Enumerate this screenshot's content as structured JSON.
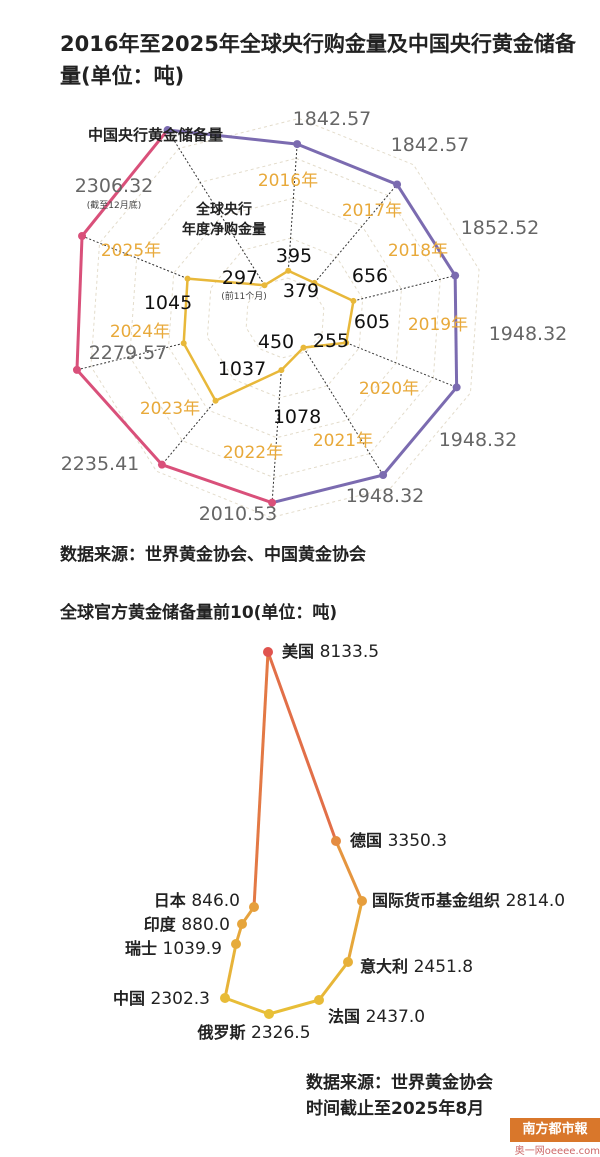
{
  "chart_data": [
    {
      "type": "radar",
      "title": "2016年至2025年全球央行购金量及中国央行黄金储备量(单位：吨)",
      "categories": [
        "2016年",
        "2017年",
        "2018年",
        "2019年",
        "2020年",
        "2021年",
        "2022年",
        "2023年",
        "2024年",
        "2025年"
      ],
      "series": [
        {
          "name": "中国央行黄金储备量",
          "values": [
            1842.57,
            1842.57,
            1852.52,
            1948.32,
            1948.32,
            1948.32,
            2010.53,
            2235.41,
            2279.57,
            2306.32
          ],
          "labels": [
            "1842.57",
            "1842.57",
            "1852.52",
            "1948.32",
            "1948.32",
            "1948.32",
            "2010.53",
            "2235.41",
            "2279.57",
            "2306.32"
          ]
        },
        {
          "name": "全球央行年度净购金量",
          "values": [
            395,
            379,
            656,
            605,
            255,
            450,
            1078,
            1037,
            1045,
            297
          ],
          "labels": [
            "395",
            "379",
            "656",
            "605",
            "255",
            "450",
            "1078",
            "1037",
            "1045",
            "297"
          ]
        }
      ],
      "notes": {
        "cn_2025": "(截至12月底)",
        "world_2025": "(前11个月)"
      },
      "colors": {
        "china": "#7b6bb0",
        "china_recent": "#d9507a",
        "world": "#e8b83a",
        "year_label": "#e8a93a",
        "grid": "#e3dccb"
      },
      "source": "数据来源：世界黄金协会、中国黄金协会"
    },
    {
      "type": "ranked_path",
      "title": "全球官方黄金储备量前10(单位：吨)",
      "points": [
        {
          "name": "美国",
          "value": "8133.5"
        },
        {
          "name": "德国",
          "value": "3350.3"
        },
        {
          "name": "国际货币基金组织",
          "value": "2814.0"
        },
        {
          "name": "意大利",
          "value": "2451.8"
        },
        {
          "name": "法国",
          "value": "2437.0"
        },
        {
          "name": "俄罗斯",
          "value": "2326.5"
        },
        {
          "name": "中国",
          "value": "2302.3"
        },
        {
          "name": "瑞士",
          "value": "1039.9"
        },
        {
          "name": "印度",
          "value": "880.0"
        },
        {
          "name": "日本",
          "value": "846.0"
        }
      ],
      "colors": {
        "top": "#e0524e",
        "bottom": "#e8c036"
      },
      "source_line1": "数据来源：世界黄金协会",
      "source_line2": "时间截止至2025年8月"
    }
  ],
  "logo": {
    "text": "南方都市報",
    "site": "奥一网oeeee.com"
  }
}
